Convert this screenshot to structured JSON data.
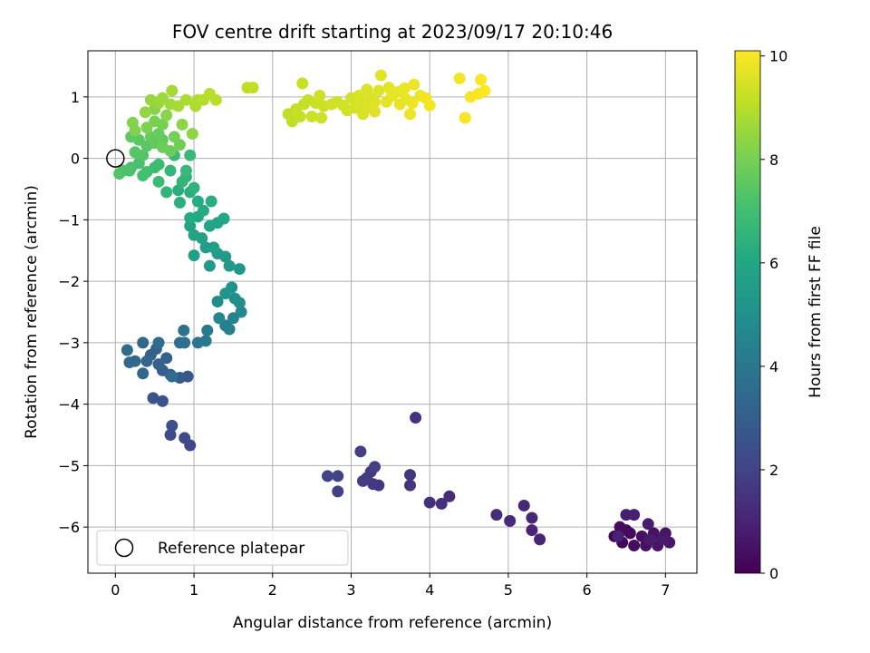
{
  "chart_data": {
    "type": "scatter",
    "title": "FOV centre drift starting at 2023/09/17 20:10:46",
    "xlabel": "Angular distance from reference (arcmin)",
    "ylabel": "Rotation from reference (arcmin)",
    "xlim": [
      -0.35,
      7.4
    ],
    "ylim": [
      -6.75,
      1.75
    ],
    "xticks": [
      0,
      1,
      2,
      3,
      4,
      5,
      6,
      7
    ],
    "yticks": [
      1,
      0,
      -1,
      -2,
      -3,
      -4,
      -5,
      -6
    ],
    "grid": true,
    "legend": {
      "placement": "lower-left",
      "label": "Reference platepar"
    },
    "reference_point": {
      "x": 0,
      "y": 0
    },
    "colorbar": {
      "label": "Hours from first FF file",
      "colormap": "viridis",
      "range": [
        0,
        10.1
      ],
      "ticks": [
        0,
        2,
        4,
        6,
        8,
        10
      ]
    },
    "points": [
      [
        6.35,
        -6.15,
        0.1
      ],
      [
        6.45,
        -6.25,
        0.15
      ],
      [
        6.5,
        -6.05,
        0.2
      ],
      [
        6.55,
        -6.1,
        0.25
      ],
      [
        6.42,
        -6.0,
        0.3
      ],
      [
        6.6,
        -6.3,
        0.35
      ],
      [
        6.7,
        -6.15,
        0.4
      ],
      [
        6.75,
        -6.3,
        0.45
      ],
      [
        6.85,
        -6.1,
        0.5
      ],
      [
        6.9,
        -6.3,
        0.55
      ],
      [
        7.0,
        -6.1,
        0.6
      ],
      [
        7.05,
        -6.25,
        0.65
      ],
      [
        6.95,
        -6.2,
        0.7
      ],
      [
        6.8,
        -6.2,
        0.75
      ],
      [
        6.78,
        -5.95,
        0.8
      ],
      [
        6.5,
        -5.8,
        0.85
      ],
      [
        6.6,
        -5.8,
        0.9
      ],
      [
        6.4,
        -6.15,
        0.95
      ],
      [
        5.4,
        -6.2,
        1.0
      ],
      [
        5.3,
        -6.05,
        1.05
      ],
      [
        5.3,
        -5.85,
        1.1
      ],
      [
        5.2,
        -5.65,
        1.15
      ],
      [
        5.02,
        -5.9,
        1.2
      ],
      [
        4.85,
        -5.8,
        1.25
      ],
      [
        4.25,
        -5.5,
        1.3
      ],
      [
        4.15,
        -5.62,
        1.35
      ],
      [
        4.0,
        -5.6,
        1.4
      ],
      [
        3.82,
        -4.22,
        1.45
      ],
      [
        3.75,
        -5.32,
        1.5
      ],
      [
        3.75,
        -5.15,
        1.55
      ],
      [
        3.35,
        -5.32,
        1.6
      ],
      [
        3.28,
        -5.3,
        1.65
      ],
      [
        3.25,
        -5.1,
        1.7
      ],
      [
        3.2,
        -5.2,
        1.75
      ],
      [
        3.15,
        -5.25,
        1.8
      ],
      [
        3.12,
        -4.77,
        1.85
      ],
      [
        3.3,
        -5.02,
        1.9
      ],
      [
        2.83,
        -5.42,
        1.95
      ],
      [
        2.83,
        -5.17,
        2.0
      ],
      [
        2.7,
        -5.17,
        2.05
      ],
      [
        0.95,
        -4.67,
        2.15
      ],
      [
        0.88,
        -4.55,
        2.25
      ],
      [
        0.7,
        -4.5,
        2.35
      ],
      [
        0.72,
        -4.35,
        2.45
      ],
      [
        0.6,
        -3.95,
        2.55
      ],
      [
        0.48,
        -3.9,
        2.65
      ],
      [
        0.92,
        -3.55,
        2.75
      ],
      [
        0.82,
        -3.57,
        2.85
      ],
      [
        0.7,
        -3.52,
        2.95
      ],
      [
        0.6,
        -3.45,
        3.0
      ],
      [
        0.65,
        -3.25,
        3.05
      ],
      [
        0.55,
        -3.35,
        3.1
      ],
      [
        0.52,
        -3.1,
        3.15
      ],
      [
        0.45,
        -3.2,
        3.2
      ],
      [
        0.4,
        -3.3,
        3.25
      ],
      [
        0.35,
        -3.5,
        3.3
      ],
      [
        0.35,
        -3.0,
        3.35
      ],
      [
        0.25,
        -3.3,
        3.4
      ],
      [
        0.18,
        -3.32,
        3.45
      ],
      [
        0.15,
        -3.12,
        3.5
      ],
      [
        0.72,
        -3.55,
        3.55
      ],
      [
        0.55,
        -3.0,
        3.6
      ],
      [
        0.82,
        -3.0,
        3.65
      ],
      [
        0.88,
        -3.0,
        3.7
      ],
      [
        0.87,
        -2.8,
        3.75
      ],
      [
        1.05,
        -3.0,
        3.9
      ],
      [
        1.15,
        -2.97,
        4.0
      ],
      [
        1.17,
        -2.8,
        4.1
      ],
      [
        1.4,
        -2.72,
        4.3
      ],
      [
        1.45,
        -2.78,
        4.4
      ],
      [
        1.5,
        -2.6,
        4.5
      ],
      [
        1.32,
        -2.6,
        4.6
      ],
      [
        1.6,
        -2.5,
        4.7
      ],
      [
        1.3,
        -2.33,
        4.8
      ],
      [
        1.58,
        -2.35,
        4.9
      ],
      [
        1.52,
        -2.28,
        5.0
      ],
      [
        1.48,
        -2.1,
        5.1
      ],
      [
        1.4,
        -2.2,
        5.2
      ],
      [
        1.58,
        -1.8,
        5.3
      ],
      [
        1.45,
        -1.75,
        5.35
      ],
      [
        1.2,
        -1.75,
        5.45
      ],
      [
        1.4,
        -1.6,
        5.5
      ],
      [
        1.3,
        -1.55,
        5.55
      ],
      [
        1.15,
        -1.45,
        5.6
      ],
      [
        1.0,
        -1.58,
        5.65
      ],
      [
        1.25,
        -1.45,
        5.7
      ],
      [
        1.1,
        -1.3,
        5.75
      ],
      [
        1.0,
        -1.25,
        5.8
      ],
      [
        0.95,
        -1.1,
        5.85
      ],
      [
        1.2,
        -1.1,
        5.9
      ],
      [
        1.3,
        -1.05,
        5.95
      ],
      [
        1.38,
        -0.98,
        6.0
      ],
      [
        1.05,
        -0.95,
        6.05
      ],
      [
        0.95,
        -0.97,
        6.1
      ],
      [
        1.12,
        -0.85,
        6.15
      ],
      [
        1.05,
        -0.7,
        6.2
      ],
      [
        1.22,
        -0.7,
        6.25
      ],
      [
        0.95,
        -0.55,
        6.3
      ],
      [
        0.8,
        -0.52,
        6.35
      ],
      [
        0.82,
        -0.72,
        6.4
      ],
      [
        0.9,
        -0.3,
        6.45
      ],
      [
        1.0,
        -0.48,
        6.5
      ],
      [
        0.65,
        -0.55,
        6.55
      ],
      [
        0.85,
        -0.38,
        6.6
      ],
      [
        0.7,
        -0.2,
        6.65
      ],
      [
        0.9,
        -0.2,
        6.7
      ],
      [
        0.95,
        0.05,
        6.75
      ],
      [
        0.75,
        0.05,
        6.8
      ],
      [
        0.55,
        -0.38,
        6.85
      ],
      [
        0.55,
        -0.1,
        6.9
      ],
      [
        0.5,
        -0.15,
        6.95
      ],
      [
        0.4,
        -0.22,
        7.0
      ],
      [
        0.35,
        -0.28,
        7.05
      ],
      [
        0.3,
        -0.08,
        7.1
      ],
      [
        0.2,
        -0.15,
        7.15
      ],
      [
        0.18,
        -0.2,
        7.2
      ],
      [
        0.1,
        -0.2,
        7.25
      ],
      [
        0.05,
        -0.25,
        7.3
      ],
      [
        0.35,
        0.05,
        7.35
      ],
      [
        0.25,
        0.1,
        7.4
      ],
      [
        0.4,
        0.2,
        7.45
      ],
      [
        0.3,
        0.3,
        7.5
      ],
      [
        0.2,
        0.35,
        7.55
      ],
      [
        0.5,
        0.25,
        7.6
      ],
      [
        0.6,
        0.3,
        7.65
      ],
      [
        0.45,
        0.35,
        7.7
      ],
      [
        0.55,
        0.4,
        7.75
      ],
      [
        0.6,
        0.18,
        7.8
      ],
      [
        0.7,
        0.12,
        7.85
      ],
      [
        0.82,
        0.22,
        7.9
      ],
      [
        0.75,
        0.35,
        7.95
      ],
      [
        0.6,
        0.55,
        8.0
      ],
      [
        0.5,
        0.6,
        8.05
      ],
      [
        0.4,
        0.5,
        8.1
      ],
      [
        0.25,
        0.45,
        8.15
      ],
      [
        0.22,
        0.58,
        8.2
      ],
      [
        0.5,
        0.8,
        8.25
      ],
      [
        0.65,
        0.7,
        8.3
      ],
      [
        0.85,
        0.55,
        8.35
      ],
      [
        0.98,
        0.4,
        8.4
      ],
      [
        0.38,
        0.75,
        8.45
      ],
      [
        0.45,
        0.95,
        8.5
      ],
      [
        0.55,
        0.9,
        8.55
      ],
      [
        0.6,
        0.98,
        8.6
      ],
      [
        0.7,
        0.88,
        8.65
      ],
      [
        0.72,
        1.1,
        8.7
      ],
      [
        0.8,
        0.85,
        8.75
      ],
      [
        0.9,
        0.95,
        8.8
      ],
      [
        1.02,
        0.85,
        8.85
      ],
      [
        1.05,
        0.95,
        8.9
      ],
      [
        1.12,
        0.95,
        8.95
      ],
      [
        1.2,
        1.05,
        9.0
      ],
      [
        1.28,
        0.95,
        9.05
      ],
      [
        1.68,
        1.15,
        9.08
      ],
      [
        1.75,
        1.15,
        9.1
      ]
    ],
    "points_late": [
      [
        2.2,
        0.72,
        9.12
      ],
      [
        2.25,
        0.6,
        9.14
      ],
      [
        2.3,
        0.8,
        9.16
      ],
      [
        2.35,
        0.68,
        9.18
      ],
      [
        2.4,
        0.88,
        9.2
      ],
      [
        2.45,
        0.95,
        9.22
      ],
      [
        2.38,
        1.22,
        9.24
      ],
      [
        2.55,
        0.9,
        9.26
      ],
      [
        2.5,
        0.68,
        9.28
      ],
      [
        2.62,
        0.66,
        9.3
      ],
      [
        2.65,
        0.85,
        9.32
      ],
      [
        2.6,
        1.02,
        9.34
      ],
      [
        2.75,
        0.88,
        9.36
      ],
      [
        2.82,
        0.92,
        9.38
      ],
      [
        2.9,
        0.86,
        9.4
      ],
      [
        2.95,
        0.78,
        9.42
      ],
      [
        3.0,
        0.98,
        9.44
      ],
      [
        3.05,
        0.82,
        9.46
      ],
      [
        3.1,
        1.02,
        9.48
      ],
      [
        3.12,
        0.9,
        9.5
      ],
      [
        3.15,
        0.72,
        9.52
      ],
      [
        3.2,
        1.12,
        9.54
      ],
      [
        3.25,
        0.98,
        9.56
      ],
      [
        3.22,
        0.82,
        9.58
      ],
      [
        3.3,
        0.92,
        9.6
      ],
      [
        3.35,
        1.1,
        9.62
      ],
      [
        3.3,
        0.76,
        9.64
      ],
      [
        3.38,
        1.35,
        9.66
      ],
      [
        3.45,
        0.92,
        9.68
      ],
      [
        3.48,
        1.15,
        9.7
      ],
      [
        3.52,
        1.02,
        9.72
      ],
      [
        3.6,
        1.08,
        9.74
      ],
      [
        3.62,
        0.88,
        9.76
      ],
      [
        3.7,
        0.96,
        9.78
      ],
      [
        3.75,
        0.72,
        9.8
      ],
      [
        3.68,
        1.14,
        9.82
      ],
      [
        3.78,
        0.9,
        9.84
      ],
      [
        3.8,
        1.2,
        9.86
      ],
      [
        3.88,
        1.02,
        9.88
      ],
      [
        3.95,
        0.98,
        9.9
      ],
      [
        4.0,
        0.86,
        9.92
      ],
      [
        4.38,
        1.3,
        9.94
      ],
      [
        4.45,
        0.66,
        9.96
      ],
      [
        4.52,
        1.0,
        9.98
      ],
      [
        4.62,
        1.05,
        10.0
      ],
      [
        4.65,
        1.28,
        10.04
      ],
      [
        4.7,
        1.1,
        10.08
      ]
    ]
  }
}
